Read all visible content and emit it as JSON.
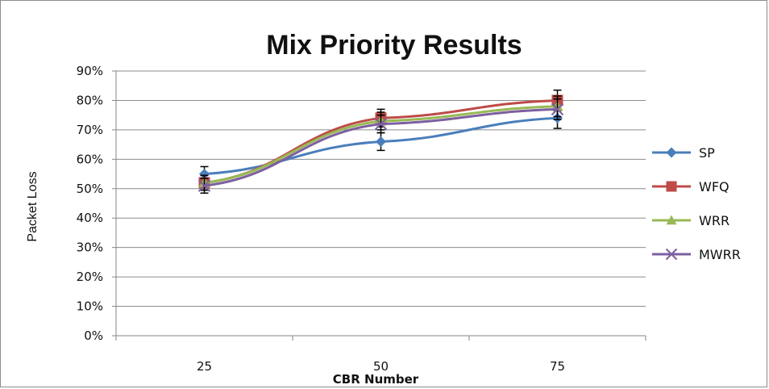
{
  "chart_data": {
    "type": "line",
    "title": "Mix Priority Results",
    "xlabel": "CBR Number",
    "ylabel": "Packet Loss",
    "categories": [
      "25",
      "50",
      "75"
    ],
    "y_ticks": [
      "0%",
      "10%",
      "20%",
      "30%",
      "40%",
      "50%",
      "60%",
      "70%",
      "80%",
      "90%"
    ],
    "ylim": [
      0,
      90
    ],
    "grid": true,
    "legend": "right",
    "series": [
      {
        "name": "SP",
        "values": [
          55,
          66,
          74
        ],
        "error": [
          2.5,
          3,
          3.5
        ],
        "color": "#4a7ebb",
        "marker": "diamond"
      },
      {
        "name": "WFQ",
        "values": [
          52,
          74,
          80
        ],
        "error": [
          2.5,
          3,
          3.5
        ],
        "color": "#be4b48",
        "marker": "square"
      },
      {
        "name": "WRR",
        "values": [
          52,
          73,
          78
        ],
        "error": [
          2.5,
          3,
          3.5
        ],
        "color": "#98b954",
        "marker": "triangle"
      },
      {
        "name": "MWRR",
        "values": [
          51,
          72,
          77
        ],
        "error": [
          2.5,
          3,
          3.5
        ],
        "color": "#7d5fa0",
        "marker": "x"
      }
    ]
  }
}
